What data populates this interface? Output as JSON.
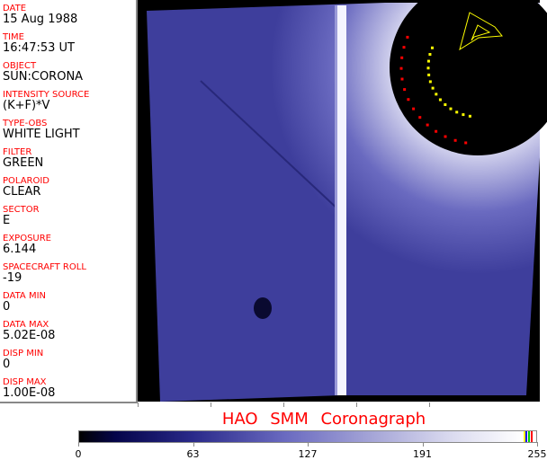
{
  "fields": [
    {
      "label": "DATE",
      "value": "15 Aug 1988"
    },
    {
      "label": "TIME",
      "value": "16:47:53 UT"
    },
    {
      "label": "OBJECT",
      "value": "SUN:CORONA"
    },
    {
      "label": "INTENSITY SOURCE",
      "value": "(K+F)*V"
    },
    {
      "label": "TYPE-OBS",
      "value": "WHITE LIGHT"
    },
    {
      "label": "FILTER",
      "value": "GREEN"
    },
    {
      "label": "POLAROID",
      "value": "CLEAR"
    },
    {
      "label": "SECTOR",
      "value": "E"
    },
    {
      "label": "EXPOSURE",
      "value": "6.144"
    },
    {
      "label": "SPACECRAFT ROLL",
      "value": "-19"
    },
    {
      "label": "DATA MIN",
      "value": "0"
    },
    {
      "label": "DATA MAX",
      "value": "5.02E-08"
    },
    {
      "label": "DISP MIN",
      "value": "0"
    },
    {
      "label": "DISP MAX",
      "value": "1.00E-08"
    }
  ],
  "title": "HAO  SMM Coronagraph",
  "colorbar": {
    "ticks": [
      "0",
      "63",
      "127",
      "191",
      "255"
    ],
    "colors": {
      "image_blue": "#3a3a9a",
      "label_red": "#ff0000",
      "overlay_yellow": "#ffff00"
    }
  }
}
